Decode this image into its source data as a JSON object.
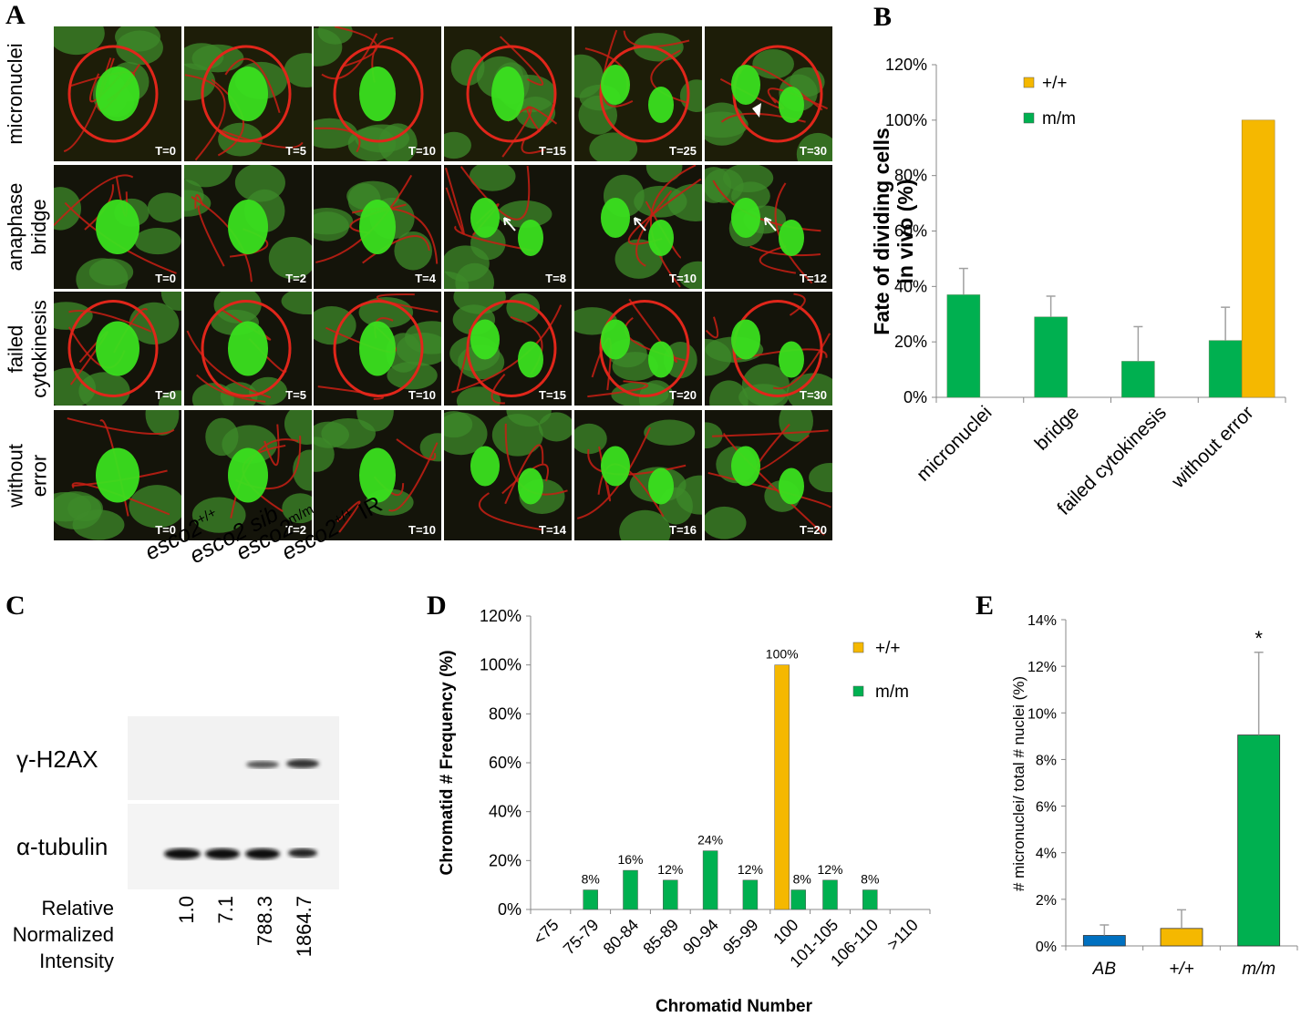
{
  "panels": {
    "A": "A",
    "B": "B",
    "C": "C",
    "D": "D",
    "E": "E"
  },
  "panel_a": {
    "rows": [
      {
        "label": "micronuclei",
        "times": [
          "T=0",
          "T=5",
          "T=10",
          "T=15",
          "T=25",
          "T=30"
        ]
      },
      {
        "label": "anaphase\nbridge",
        "times": [
          "T=0",
          "T=2",
          "T=4",
          "T=8",
          "T=10",
          "T=12"
        ]
      },
      {
        "label": "failed\ncytokinesis",
        "times": [
          "T=0",
          "T=5",
          "T=10",
          "T=15",
          "T=20",
          "T=30"
        ]
      },
      {
        "label": "without\nerror",
        "times": [
          "T=0",
          "T=2",
          "T=10",
          "T=14",
          "T=16",
          "T=20"
        ]
      }
    ]
  },
  "panel_c": {
    "lanes": [
      "esco2+/+",
      "esco2 sib",
      "esco2m/m",
      "esco2+/+ IR"
    ],
    "lane_parts": [
      {
        "base": "esco2",
        "sup": "+/+",
        "tail": ""
      },
      {
        "base": "esco2 sib",
        "sup": "",
        "tail": ""
      },
      {
        "base": "esco2",
        "sup": "m/m",
        "tail": ""
      },
      {
        "base": "esco2",
        "sup": "+/+",
        "tail": " IR"
      }
    ],
    "blots": [
      "γ-H2AX",
      "α-tubulin"
    ],
    "intensity_label": [
      "Relative",
      "Normalized",
      "Intensity"
    ],
    "intensities": [
      "1.0",
      "7.1",
      "788.3",
      "1864.7"
    ]
  },
  "colors": {
    "wt": "#f5b800",
    "mm": "#00b050",
    "ab": "#0070c0",
    "error_bar": "#a0a0a0"
  },
  "chart_data": [
    {
      "panel": "B",
      "type": "bar",
      "ylabel": "Fate of dividing cells in vivo (%)",
      "categories": [
        "micronuclei",
        "bridge",
        "failed cytokinesis",
        "without error"
      ],
      "series": [
        {
          "name": "m/m",
          "values": [
            37,
            29,
            13,
            20.5
          ],
          "errors": [
            9.5,
            7.5,
            12.5,
            12
          ]
        },
        {
          "name": "+/+",
          "values": [
            null,
            null,
            null,
            100
          ],
          "errors": [
            null,
            null,
            null,
            null
          ]
        }
      ],
      "ylim": [
        0,
        120
      ],
      "yticks": [
        "0%",
        "20%",
        "40%",
        "60%",
        "80%",
        "100%",
        "120%"
      ],
      "legend": "top-right"
    },
    {
      "panel": "D",
      "type": "bar",
      "xlabel": "Chromatid Number",
      "ylabel": "Chromatid # Frequency (%)",
      "categories": [
        "<75",
        "75-79",
        "80-84",
        "85-89",
        "90-94",
        "95-99",
        "100",
        "101-105",
        "106-110",
        ">110"
      ],
      "series": [
        {
          "name": "+/+",
          "values": [
            0,
            0,
            0,
            0,
            0,
            0,
            100,
            0,
            0,
            0
          ]
        },
        {
          "name": "m/m",
          "values": [
            0,
            8,
            16,
            12,
            24,
            12,
            8,
            12,
            8,
            0
          ]
        }
      ],
      "data_labels": [
        "8%",
        "16%",
        "12%",
        "24%",
        "12%",
        "100%",
        "8%",
        "12%",
        "8%"
      ],
      "ylim": [
        0,
        120
      ],
      "yticks": [
        "0%",
        "20%",
        "40%",
        "60%",
        "80%",
        "100%",
        "120%"
      ],
      "legend": "top-right"
    },
    {
      "panel": "E",
      "type": "bar",
      "ylabel": "# micronuclei/ total # nuclei (%)",
      "categories": [
        "AB",
        "+/+",
        "m/m"
      ],
      "values": [
        0.45,
        0.75,
        9.05
      ],
      "errors": [
        0.45,
        0.8,
        3.55
      ],
      "significance": "*",
      "ylim": [
        0,
        14
      ],
      "yticks": [
        "0%",
        "2%",
        "4%",
        "6%",
        "8%",
        "10%",
        "12%",
        "14%"
      ]
    }
  ]
}
